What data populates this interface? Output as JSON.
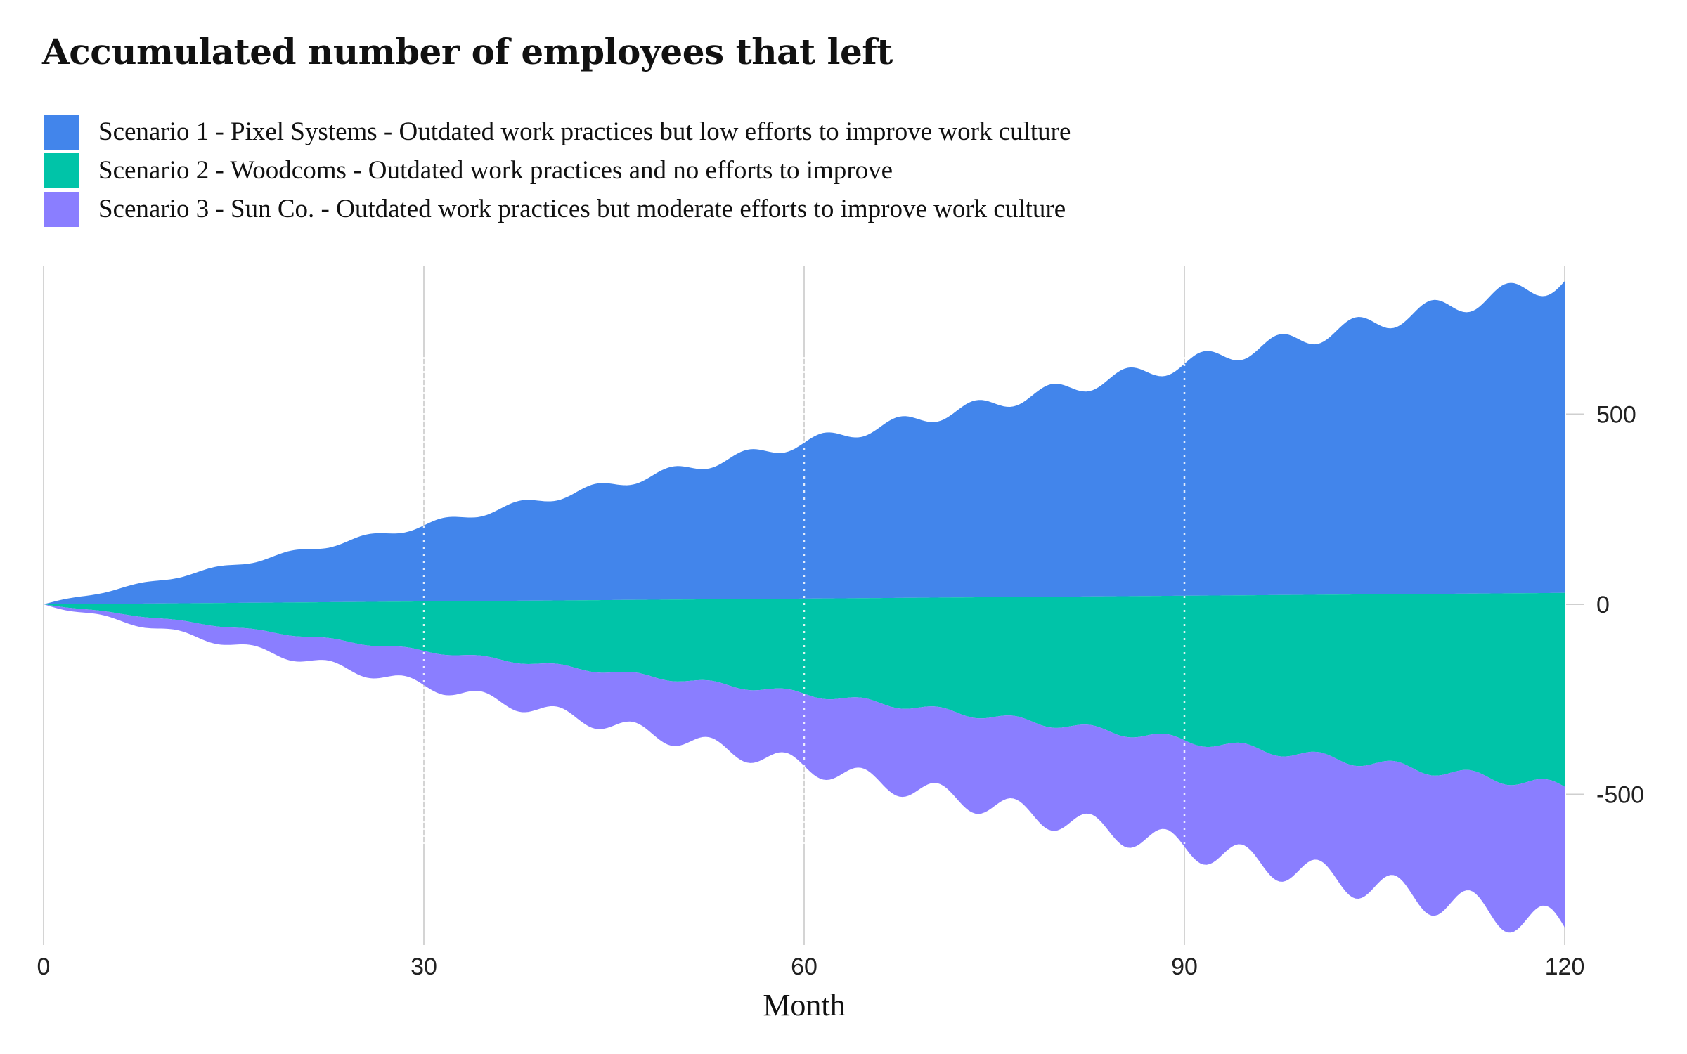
{
  "chart_data": {
    "type": "area",
    "layout": "streamgraph",
    "title": "Accumulated number of employees that left",
    "xlabel": "Month",
    "ylabel": "",
    "xlim": [
      0,
      120
    ],
    "ylim": [
      -900,
      880
    ],
    "x_ticks": [
      0,
      30,
      60,
      90,
      120
    ],
    "y_ticks": [
      500,
      0,
      -500
    ],
    "y_tick_labels": [
      "500",
      "0",
      "-500"
    ],
    "y_axis_side": "right",
    "grid": "vertical",
    "legend_position": "top-left",
    "series": [
      {
        "name": "Scenario 1 - Pixel Systems - Outdated work practices but low efforts to improve work culture",
        "color": "#4285EB",
        "total_at_month": [
          [
            0,
            0
          ],
          [
            30,
            200
          ],
          [
            60,
            410
          ],
          [
            90,
            610
          ],
          [
            120,
            820
          ]
        ],
        "monthly_wave_amplitude": 12,
        "wave_period_months": 6
      },
      {
        "name": "Scenario 2 - Woodcoms - Outdated work practices and no efforts to improve",
        "color": "#00C4A8",
        "total_at_month": [
          [
            0,
            0
          ],
          [
            30,
            130
          ],
          [
            60,
            250
          ],
          [
            90,
            380
          ],
          [
            120,
            510
          ]
        ],
        "monthly_wave_amplitude": 6,
        "wave_period_months": 6
      },
      {
        "name": "Scenario 3 - Sun Co. - Outdated work practices but moderate efforts to improve work culture",
        "color": "#8A7EFF",
        "total_at_month": [
          [
            0,
            0
          ],
          [
            30,
            90
          ],
          [
            60,
            190
          ],
          [
            90,
            280
          ],
          [
            120,
            370
          ]
        ],
        "monthly_wave_amplitude": 14,
        "wave_period_months": 6
      }
    ]
  }
}
